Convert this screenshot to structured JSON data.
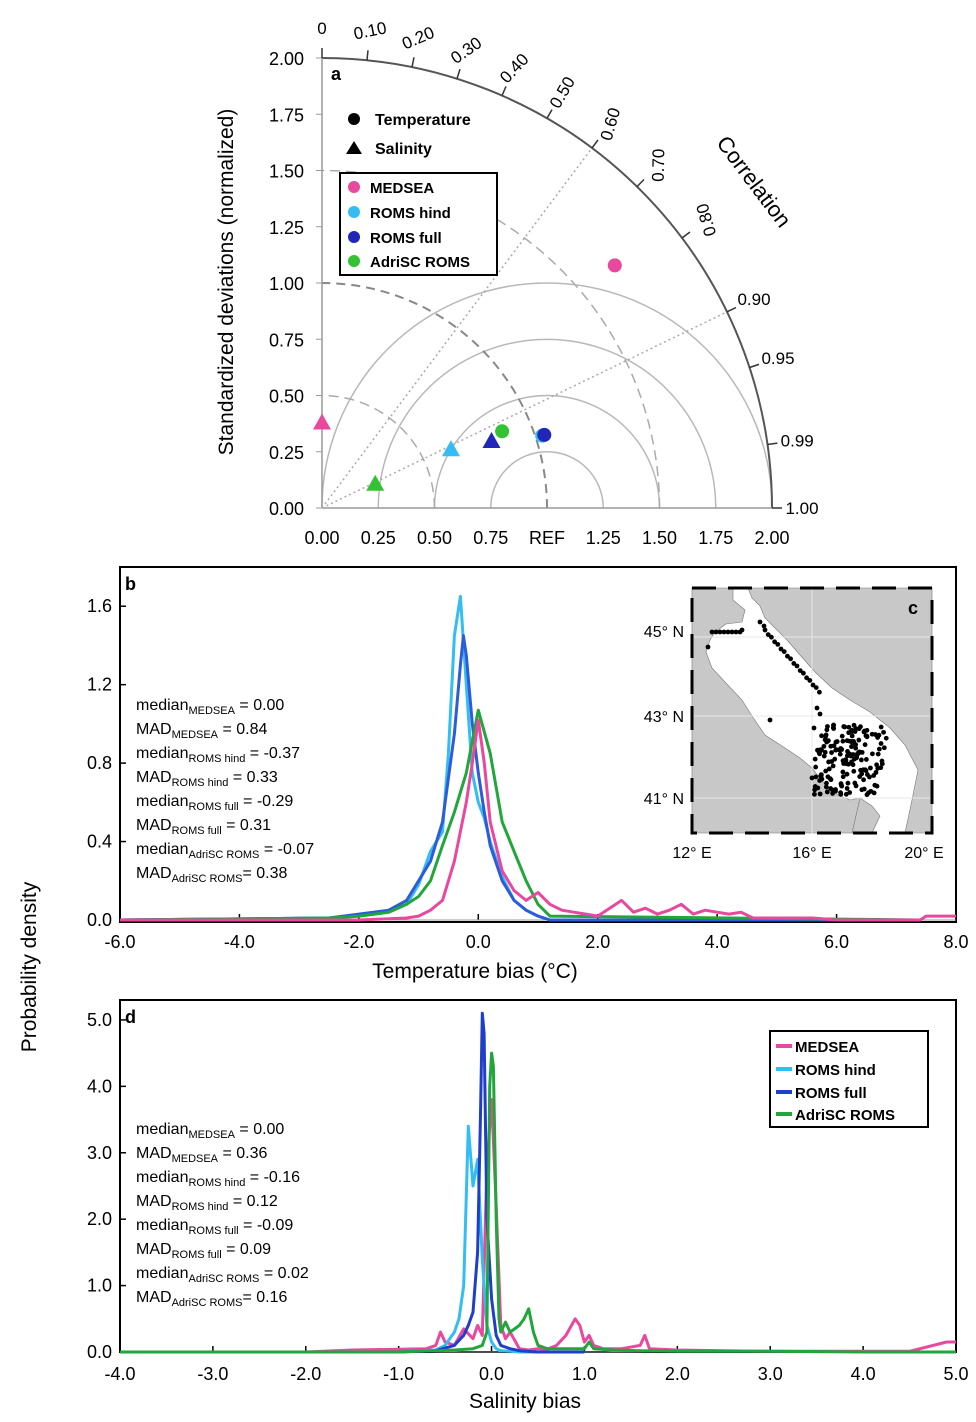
{
  "chart_data": [
    {
      "type": "taylor",
      "panel_label": "a",
      "ylabel": "Standardized deviations (normalized)",
      "arc_label": "Correlation",
      "std_ticks": [
        "0.00",
        "0.25",
        "0.50",
        "0.75",
        "1.00",
        "1.25",
        "1.50",
        "1.75",
        "2.00"
      ],
      "x_ticks": [
        "0.00",
        "0.25",
        "0.50",
        "0.75",
        "REF",
        "1.25",
        "1.50",
        "1.75",
        "2.00"
      ],
      "corr_ticks": [
        "0",
        "0.10",
        "0.20",
        "0.30",
        "0.40",
        "0.50",
        "0.60",
        "0.70",
        "0.80",
        "0.90",
        "0.95",
        "0.99",
        "1.00"
      ],
      "std_max": 2.0,
      "marker_legend": [
        "Temperature",
        "Salinity"
      ],
      "model_legend": [
        "MEDSEA",
        "ROMS hind",
        "ROMS full",
        "AdriSC ROMS"
      ],
      "colors": {
        "MEDSEA": "#e8489e",
        "ROMS hind": "#33bdf2",
        "ROMS full": "#1f26b8",
        "AdriSC ROMS": "#33c233"
      },
      "points": [
        {
          "model": "MEDSEA",
          "variable": "Temperature",
          "std": 1.69,
          "corr": 0.77
        },
        {
          "model": "ROMS hind",
          "variable": "Temperature",
          "std": 1.03,
          "corr": 0.95
        },
        {
          "model": "ROMS full",
          "variable": "Temperature",
          "std": 1.04,
          "corr": 0.95
        },
        {
          "model": "AdriSC ROMS",
          "variable": "Temperature",
          "std": 0.87,
          "corr": 0.92
        },
        {
          "model": "MEDSEA",
          "variable": "Salinity",
          "std": 0.38,
          "corr": 0.0
        },
        {
          "model": "ROMS hind",
          "variable": "Salinity",
          "std": 0.63,
          "corr": 0.91
        },
        {
          "model": "ROMS full",
          "variable": "Salinity",
          "std": 0.81,
          "corr": 0.93
        },
        {
          "model": "AdriSC ROMS",
          "variable": "Salinity",
          "std": 0.26,
          "corr": 0.91
        }
      ]
    },
    {
      "type": "line",
      "panel_label": "b",
      "xlabel": "Temperature bias (°C)",
      "ylabel": "Probability density",
      "xlim": [
        -6,
        8
      ],
      "ylim": [
        0,
        1.8
      ],
      "x_ticks": [
        "-6.0",
        "-4.0",
        "-2.0",
        "0.0",
        "2.0",
        "4.0",
        "6.0",
        "8.0"
      ],
      "y_ticks": [
        "0.0",
        "0.4",
        "0.8",
        "1.2",
        "1.6"
      ],
      "series": [
        {
          "name": "ROMS hind",
          "color": "#33bdf2",
          "x": [
            -6,
            -2.5,
            -2.0,
            -1.5,
            -1.2,
            -1.0,
            -0.8,
            -0.6,
            -0.5,
            -0.4,
            -0.3,
            -0.2,
            -0.1,
            0.0,
            0.1,
            0.2,
            0.4,
            0.6,
            0.8,
            1.0,
            1.2,
            7.4
          ],
          "y": [
            0.0,
            0.01,
            0.02,
            0.04,
            0.08,
            0.18,
            0.35,
            0.45,
            0.85,
            1.45,
            1.65,
            1.2,
            0.75,
            0.6,
            0.52,
            0.4,
            0.22,
            0.1,
            0.05,
            0.02,
            0.0,
            0.0
          ]
        },
        {
          "name": "ROMS full",
          "color": "#2e5bd9",
          "x": [
            -6,
            -2.5,
            -2.0,
            -1.5,
            -1.2,
            -1.0,
            -0.8,
            -0.6,
            -0.4,
            -0.3,
            -0.25,
            -0.2,
            -0.1,
            0.0,
            0.1,
            0.2,
            0.4,
            0.6,
            0.8,
            1.0,
            1.2,
            7.4
          ],
          "y": [
            0.0,
            0.01,
            0.03,
            0.05,
            0.1,
            0.2,
            0.3,
            0.5,
            0.95,
            1.3,
            1.45,
            1.35,
            1.0,
            0.75,
            0.55,
            0.38,
            0.2,
            0.1,
            0.05,
            0.02,
            0.0,
            0.0
          ]
        },
        {
          "name": "AdriSC ROMS",
          "color": "#22a63c",
          "x": [
            -6,
            -2.5,
            -2.0,
            -1.5,
            -1.2,
            -1.0,
            -0.8,
            -0.6,
            -0.4,
            -0.2,
            0.0,
            0.2,
            0.4,
            0.6,
            0.8,
            1.0,
            1.2,
            7.4
          ],
          "y": [
            0.0,
            0.01,
            0.02,
            0.04,
            0.08,
            0.12,
            0.2,
            0.38,
            0.55,
            0.75,
            1.07,
            0.85,
            0.5,
            0.35,
            0.2,
            0.08,
            0.02,
            0.0
          ]
        },
        {
          "name": "MEDSEA",
          "color": "#e8489e",
          "x": [
            -6,
            -2.0,
            -1.2,
            -1.0,
            -0.8,
            -0.6,
            -0.4,
            -0.2,
            -0.1,
            0.0,
            0.1,
            0.2,
            0.4,
            0.6,
            0.8,
            1.0,
            1.2,
            1.4,
            1.6,
            1.8,
            2.0,
            2.2,
            2.4,
            2.6,
            2.8,
            3.0,
            3.2,
            3.4,
            3.6,
            3.8,
            4.0,
            4.2,
            4.4,
            4.6,
            5.0,
            5.6,
            6.0,
            6.6,
            7.0,
            7.4,
            7.5,
            8.0
          ],
          "y": [
            0.0,
            0.0,
            0.01,
            0.02,
            0.05,
            0.1,
            0.3,
            0.6,
            0.8,
            1.02,
            0.8,
            0.5,
            0.25,
            0.15,
            0.1,
            0.14,
            0.08,
            0.05,
            0.04,
            0.03,
            0.02,
            0.06,
            0.1,
            0.04,
            0.06,
            0.03,
            0.05,
            0.08,
            0.03,
            0.05,
            0.04,
            0.03,
            0.04,
            0.01,
            0.01,
            0.01,
            0.0,
            0.0,
            0.0,
            0.0,
            0.02,
            0.02
          ]
        }
      ]
    },
    {
      "type": "line",
      "panel_label": "d",
      "xlabel": "Salinity bias",
      "ylabel": "Probability density",
      "xlim": [
        -4,
        5
      ],
      "ylim": [
        0,
        5.3
      ],
      "x_ticks": [
        "-4.0",
        "-3.0",
        "-2.0",
        "-1.0",
        "0.0",
        "1.0",
        "2.0",
        "3.0",
        "4.0",
        "5.0"
      ],
      "y_ticks": [
        "0.0",
        "1.0",
        "2.0",
        "3.0",
        "4.0",
        "5.0"
      ],
      "series": [
        {
          "name": "MEDSEA",
          "color": "#e8489e",
          "x": [
            -4,
            -2.0,
            -1.5,
            -1.0,
            -0.7,
            -0.6,
            -0.55,
            -0.5,
            -0.4,
            -0.3,
            -0.2,
            -0.15,
            -0.1,
            -0.05,
            0.0,
            0.05,
            0.1,
            0.15,
            0.2,
            0.3,
            0.4,
            0.5,
            0.6,
            0.7,
            0.8,
            0.9,
            0.95,
            1.0,
            1.05,
            1.1,
            1.2,
            1.4,
            1.6,
            1.65,
            1.7,
            2.0,
            2.5,
            3.0,
            4.5,
            4.9,
            5.0
          ],
          "y": [
            0.0,
            0.0,
            0.03,
            0.04,
            0.05,
            0.1,
            0.3,
            0.15,
            0.1,
            0.35,
            0.2,
            0.4,
            0.25,
            2.8,
            3.8,
            2.2,
            0.4,
            0.2,
            0.3,
            0.05,
            0.03,
            0.05,
            0.04,
            0.1,
            0.25,
            0.5,
            0.4,
            0.15,
            0.25,
            0.1,
            0.05,
            0.05,
            0.1,
            0.25,
            0.05,
            0.03,
            0.02,
            0.01,
            0.01,
            0.15,
            0.15
          ]
        },
        {
          "name": "ROMS hind",
          "color": "#33bdf2",
          "x": [
            -4,
            -1.0,
            -0.6,
            -0.5,
            -0.4,
            -0.35,
            -0.3,
            -0.25,
            -0.2,
            -0.15,
            -0.1,
            -0.05,
            0.0,
            0.05,
            0.1,
            0.2,
            0.3,
            0.4,
            0.5,
            1.0
          ],
          "y": [
            0.0,
            0.0,
            0.03,
            0.1,
            0.3,
            0.5,
            1.0,
            3.4,
            2.5,
            2.9,
            1.4,
            0.4,
            0.15,
            0.05,
            0.02,
            0.01,
            0.0,
            0.0,
            0.0,
            0.0
          ]
        },
        {
          "name": "ROMS full",
          "color": "#1f3fc9",
          "x": [
            -4,
            -1.0,
            -0.6,
            -0.4,
            -0.3,
            -0.25,
            -0.2,
            -0.15,
            -0.12,
            -0.1,
            -0.08,
            -0.05,
            0.0,
            0.05,
            0.1,
            0.2,
            0.3,
            0.5,
            1.0
          ],
          "y": [
            0.0,
            0.0,
            0.02,
            0.1,
            0.25,
            0.4,
            0.6,
            1.5,
            3.5,
            5.1,
            4.8,
            2.0,
            0.8,
            0.25,
            0.1,
            0.05,
            0.02,
            0.0,
            0.0
          ]
        },
        {
          "name": "AdriSC ROMS",
          "color": "#22a63c",
          "x": [
            -4,
            -1.0,
            -0.8,
            -0.6,
            -0.4,
            -0.2,
            -0.1,
            -0.05,
            -0.02,
            0.0,
            0.02,
            0.05,
            0.08,
            0.1,
            0.15,
            0.2,
            0.3,
            0.35,
            0.4,
            0.45,
            0.5,
            0.6,
            0.8,
            1.0,
            1.05,
            1.1,
            1.3,
            1.6,
            2.0,
            3.0,
            4.0,
            5.0
          ],
          "y": [
            0.0,
            0.0,
            0.01,
            0.02,
            0.03,
            0.05,
            0.1,
            0.3,
            4.0,
            4.5,
            4.3,
            2.0,
            0.5,
            0.3,
            0.45,
            0.3,
            0.4,
            0.5,
            0.65,
            0.3,
            0.1,
            0.05,
            0.05,
            0.05,
            0.15,
            0.05,
            0.03,
            0.02,
            0.01,
            0.01,
            0.0,
            0.0
          ]
        }
      ],
      "legend": [
        "MEDSEA",
        "ROMS hind",
        "ROMS full",
        "AdriSC ROMS"
      ]
    }
  ],
  "stats_b": [
    {
      "base": "median",
      "sub": "MEDSEA",
      "value": " = 0.00"
    },
    {
      "base": "MAD",
      "sub": "MEDSEA",
      "value": " = 0.84"
    },
    {
      "base": "median",
      "sub": "ROMS hind",
      "value": " = -0.37"
    },
    {
      "base": "MAD",
      "sub": "ROMS hind",
      "value": " = 0.33"
    },
    {
      "base": "median",
      "sub": "ROMS full",
      "value": " = -0.29"
    },
    {
      "base": "MAD",
      "sub": "ROMS full",
      "value": " = 0.31"
    },
    {
      "base": "median",
      "sub": "AdriSC ROMS",
      "value": " = -0.07"
    },
    {
      "base": "MAD",
      "sub": "AdriSC ROMS",
      "value": "= 0.38"
    }
  ],
  "stats_d": [
    {
      "base": "median",
      "sub": "MEDSEA",
      "value": " = 0.00"
    },
    {
      "base": "MAD",
      "sub": "MEDSEA",
      "value": " = 0.36"
    },
    {
      "base": "median",
      "sub": "ROMS hind",
      "value": " = -0.16"
    },
    {
      "base": "MAD",
      "sub": "ROMS hind",
      "value": " = 0.12"
    },
    {
      "base": "median",
      "sub": "ROMS full",
      "value": " = -0.09"
    },
    {
      "base": "MAD",
      "sub": "ROMS full",
      "value": " = 0.09"
    },
    {
      "base": "median",
      "sub": "AdriSC ROMS",
      "value": " = 0.02"
    },
    {
      "base": "MAD",
      "sub": "AdriSC ROMS",
      "value": "= 0.16"
    }
  ],
  "inset_map": {
    "panel_label": "c",
    "lat_labels": [
      "45° N",
      "43° N",
      "41° N"
    ],
    "lon_labels": [
      "12° E",
      "16° E",
      "20° E"
    ],
    "land_color": "#c8c8c8",
    "sea_color": "#ffffff"
  },
  "shared_ylabel": "Probability density"
}
